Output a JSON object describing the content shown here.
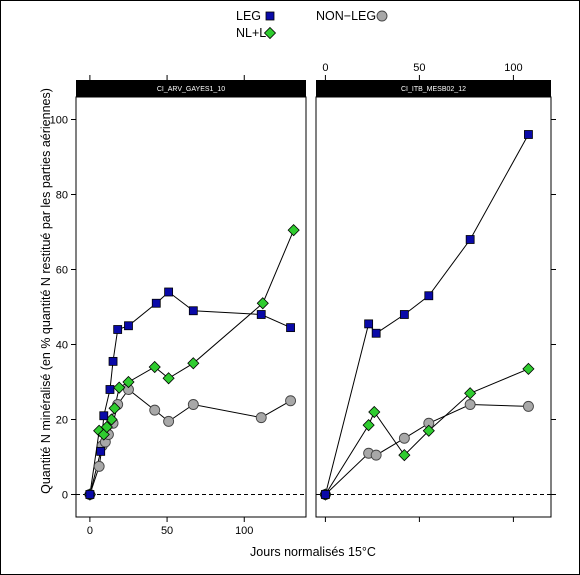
{
  "chart_data": {
    "type": "line",
    "xlabel": "Jours normalisés 15°C",
    "ylabel": "Quantité N minéralisé (en % quantité N restitué par les parties aériennes)",
    "ylim": [
      -6,
      106
    ],
    "yticks": [
      0,
      20,
      40,
      60,
      80,
      100
    ],
    "reference_line": {
      "y": 0,
      "style": "dashed"
    },
    "legend": {
      "placement": "top",
      "entries": [
        {
          "label": "LEG",
          "marker": "square",
          "color": "#0a0aa8"
        },
        {
          "label": "NON−LEG",
          "marker": "circle",
          "color": "#a8a8a8"
        },
        {
          "label": "NL+L",
          "marker": "diamond",
          "color": "#2fcc2f"
        }
      ]
    },
    "panels": [
      {
        "title": "CI_ARV_GAYES1_10",
        "xlim": [
          -9,
          140
        ],
        "xticks": [
          0,
          50,
          100
        ],
        "xticks_position": "top",
        "series": [
          {
            "name": "LEG",
            "marker": "square",
            "color": "#0a0aa8",
            "points": [
              [
                0,
                0
              ],
              [
                7,
                11.5
              ],
              [
                9,
                21
              ],
              [
                13,
                28
              ],
              [
                15,
                35.5
              ],
              [
                18,
                44
              ],
              [
                25,
                45
              ],
              [
                43,
                51
              ],
              [
                51,
                54
              ],
              [
                67,
                49
              ],
              [
                111,
                48
              ],
              [
                130,
                44.5
              ]
            ]
          },
          {
            "name": "NL+L",
            "marker": "diamond",
            "color": "#2fcc2f",
            "points": [
              [
                0,
                0
              ],
              [
                6,
                17
              ],
              [
                9,
                16
              ],
              [
                11,
                18
              ],
              [
                14,
                20
              ],
              [
                16,
                23
              ],
              [
                19,
                28.5
              ],
              [
                25,
                30
              ],
              [
                42,
                34
              ],
              [
                51,
                31
              ],
              [
                67,
                35
              ],
              [
                112,
                51
              ],
              [
                132,
                70.5
              ]
            ]
          },
          {
            "name": "NON−LEG",
            "marker": "circle",
            "color": "#a8a8a8",
            "points": [
              [
                0,
                0
              ],
              [
                6,
                7.5
              ],
              [
                8,
                13
              ],
              [
                10,
                14
              ],
              [
                12,
                16
              ],
              [
                15,
                19
              ],
              [
                18,
                24
              ],
              [
                25,
                28
              ],
              [
                42,
                22.5
              ],
              [
                51,
                19.5
              ],
              [
                67,
                24
              ],
              [
                111,
                20.5
              ],
              [
                130,
                25
              ]
            ]
          }
        ]
      },
      {
        "title": "CI_ITB_MESB02_12",
        "xlim": [
          -5,
          120
        ],
        "xticks": [
          0,
          50,
          100
        ],
        "xticks_position": "top",
        "series": [
          {
            "name": "LEG",
            "marker": "square",
            "color": "#0a0aa8",
            "points": [
              [
                0,
                0
              ],
              [
                23,
                45.5
              ],
              [
                27,
                43
              ],
              [
                42,
                48
              ],
              [
                55,
                53
              ],
              [
                77,
                68
              ],
              [
                108,
                96
              ]
            ]
          },
          {
            "name": "NL+L",
            "marker": "diamond",
            "color": "#2fcc2f",
            "points": [
              [
                0,
                0
              ],
              [
                23,
                18.5
              ],
              [
                26,
                22
              ],
              [
                42,
                10.5
              ],
              [
                55,
                17
              ],
              [
                77,
                27
              ],
              [
                108,
                33.5
              ]
            ]
          },
          {
            "name": "NON−LEG",
            "marker": "circle",
            "color": "#a8a8a8",
            "points": [
              [
                0,
                0
              ],
              [
                23,
                11
              ],
              [
                27,
                10.5
              ],
              [
                42,
                15
              ],
              [
                55,
                19
              ],
              [
                77,
                24
              ],
              [
                108,
                23.5
              ]
            ]
          }
        ]
      }
    ]
  }
}
